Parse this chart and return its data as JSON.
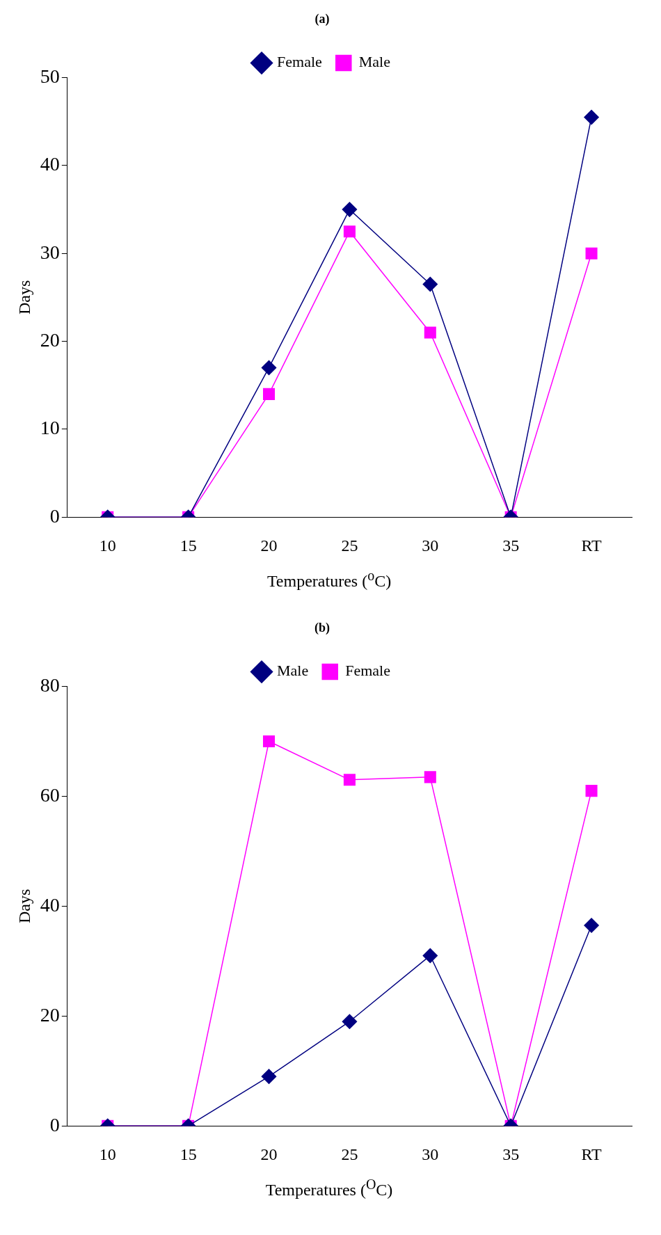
{
  "chart_data": [
    {
      "type": "line",
      "title": "(a)",
      "xlabel": "Temperatures ($^{o}$C)",
      "ylabel": "Days",
      "categories": [
        "10",
        "15",
        "20",
        "25",
        "30",
        "35",
        "RT"
      ],
      "series": [
        {
          "name": "Female",
          "color": "#000080",
          "marker": "diamond",
          "values": [
            0,
            0,
            17,
            35,
            26.5,
            0,
            45.5
          ]
        },
        {
          "name": "Male",
          "color": "#ff00ff",
          "marker": "square",
          "values": [
            0,
            0,
            14,
            32.5,
            21,
            0,
            30
          ]
        }
      ],
      "ylim": [
        0,
        50
      ],
      "yticks": [
        0,
        10,
        20,
        30,
        40,
        50
      ],
      "grid": false,
      "legend": "top",
      "line_style": "solid"
    },
    {
      "type": "line",
      "title": "(b)",
      "xlabel": "Temperatures ($^{O}$C)",
      "ylabel": "Days",
      "categories": [
        "10",
        "15",
        "20",
        "25",
        "30",
        "35",
        "RT"
      ],
      "series": [
        {
          "name": "Male",
          "color": "#000080",
          "marker": "diamond",
          "values": [
            0,
            0,
            9,
            19,
            31,
            0,
            36.5
          ]
        },
        {
          "name": "Female",
          "color": "#ff00ff",
          "marker": "square",
          "values": [
            0,
            0,
            70,
            63,
            63.5,
            0,
            61
          ]
        }
      ],
      "ylim": [
        0,
        80
      ],
      "yticks": [
        0,
        20,
        40,
        60,
        80
      ],
      "grid": false,
      "legend": "top",
      "line_style": "solid"
    }
  ]
}
